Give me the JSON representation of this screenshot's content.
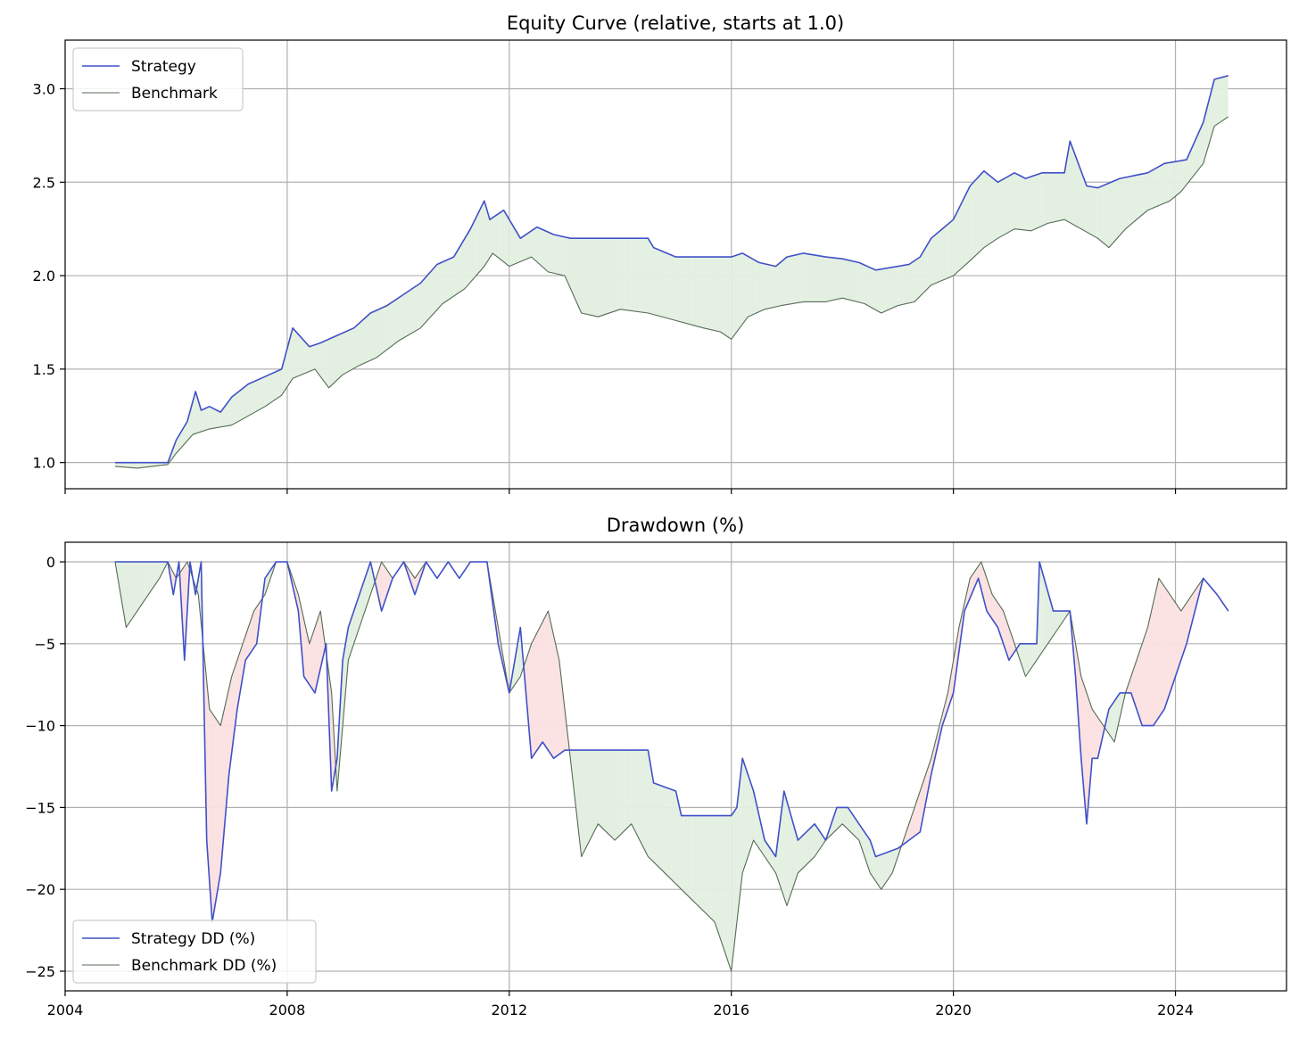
{
  "chart_data": [
    {
      "type": "line",
      "title": "Equity Curve (relative, starts at 1.0)",
      "xlabel": "",
      "ylabel": "",
      "xlim": [
        2004.0,
        2026.0
      ],
      "ylim": [
        0.86,
        3.26
      ],
      "yticks": [
        1.0,
        1.5,
        2.0,
        2.5,
        3.0
      ],
      "ytick_labels": [
        "1.0",
        "1.5",
        "2.0",
        "2.5",
        "3.0"
      ],
      "xticks": [
        2004,
        2008,
        2012,
        2016,
        2020,
        2024
      ],
      "grid": true,
      "legend_position": "upper-left",
      "fill_between": {
        "above_color": "#e3f0e1",
        "below_color": "#fbe1e1"
      },
      "series": [
        {
          "name": "Strategy",
          "color": "#4050c8",
          "x": [
            2004.9,
            2005.5,
            2005.85,
            2006.0,
            2006.2,
            2006.35,
            2006.45,
            2006.6,
            2006.8,
            2007.0,
            2007.3,
            2007.6,
            2007.9,
            2008.1,
            2008.4,
            2008.6,
            2008.9,
            2009.2,
            2009.5,
            2009.8,
            2010.1,
            2010.4,
            2010.7,
            2011.0,
            2011.3,
            2011.55,
            2011.65,
            2011.9,
            2012.2,
            2012.5,
            2012.8,
            2013.1,
            2014.5,
            2014.6,
            2015.0,
            2015.1,
            2016.0,
            2016.2,
            2016.5,
            2016.8,
            2017.0,
            2017.3,
            2017.7,
            2018.0,
            2018.3,
            2018.6,
            2019.2,
            2019.4,
            2019.6,
            2020.0,
            2020.3,
            2020.55,
            2020.8,
            2021.1,
            2021.3,
            2021.6,
            2022.0,
            2022.1,
            2022.4,
            2022.6,
            2023.0,
            2023.5,
            2023.8,
            2024.2,
            2024.5,
            2024.7,
            2024.95
          ],
          "values": [
            1.0,
            1.0,
            1.0,
            1.12,
            1.22,
            1.38,
            1.28,
            1.3,
            1.27,
            1.35,
            1.42,
            1.46,
            1.5,
            1.72,
            1.62,
            1.64,
            1.68,
            1.72,
            1.8,
            1.84,
            1.9,
            1.96,
            2.06,
            2.1,
            2.25,
            2.4,
            2.3,
            2.35,
            2.2,
            2.26,
            2.22,
            2.2,
            2.2,
            2.15,
            2.1,
            2.1,
            2.1,
            2.12,
            2.07,
            2.05,
            2.1,
            2.12,
            2.1,
            2.09,
            2.07,
            2.03,
            2.06,
            2.1,
            2.2,
            2.3,
            2.48,
            2.56,
            2.5,
            2.55,
            2.52,
            2.55,
            2.55,
            2.72,
            2.48,
            2.47,
            2.52,
            2.55,
            2.6,
            2.62,
            2.82,
            3.05,
            3.07
          ]
        },
        {
          "name": "Benchmark",
          "color": "#556b55",
          "x": [
            2004.9,
            2005.3,
            2005.85,
            2006.0,
            2006.3,
            2006.6,
            2007.0,
            2007.3,
            2007.6,
            2007.9,
            2008.1,
            2008.5,
            2008.75,
            2009.0,
            2009.3,
            2009.6,
            2010.0,
            2010.4,
            2010.8,
            2011.2,
            2011.55,
            2011.7,
            2012.0,
            2012.4,
            2012.7,
            2013.0,
            2013.3,
            2013.6,
            2014.0,
            2014.5,
            2015.0,
            2015.5,
            2015.8,
            2016.0,
            2016.3,
            2016.6,
            2016.9,
            2017.3,
            2017.7,
            2018.0,
            2018.4,
            2018.7,
            2019.0,
            2019.3,
            2019.6,
            2020.0,
            2020.3,
            2020.55,
            2020.8,
            2021.1,
            2021.4,
            2021.7,
            2022.0,
            2022.3,
            2022.6,
            2022.8,
            2023.1,
            2023.5,
            2023.9,
            2024.1,
            2024.5,
            2024.7,
            2024.95
          ],
          "values": [
            0.98,
            0.97,
            0.99,
            1.05,
            1.15,
            1.18,
            1.2,
            1.25,
            1.3,
            1.36,
            1.45,
            1.5,
            1.4,
            1.47,
            1.52,
            1.56,
            1.65,
            1.72,
            1.85,
            1.93,
            2.05,
            2.12,
            2.05,
            2.1,
            2.02,
            2.0,
            1.8,
            1.78,
            1.82,
            1.8,
            1.76,
            1.72,
            1.7,
            1.66,
            1.78,
            1.82,
            1.84,
            1.86,
            1.86,
            1.88,
            1.85,
            1.8,
            1.84,
            1.86,
            1.95,
            2.0,
            2.08,
            2.15,
            2.2,
            2.25,
            2.24,
            2.28,
            2.3,
            2.25,
            2.2,
            2.15,
            2.25,
            2.35,
            2.4,
            2.45,
            2.6,
            2.8,
            2.85
          ]
        }
      ]
    },
    {
      "type": "line",
      "title": "Drawdown (%)",
      "xlabel": "",
      "ylabel": "",
      "xlim": [
        2004.0,
        2026.0
      ],
      "ylim": [
        -26.2,
        1.2
      ],
      "yticks": [
        0,
        -5,
        -10,
        -15,
        -20,
        -25
      ],
      "ytick_labels": [
        "0",
        "−5",
        "−10",
        "−15",
        "−20",
        "−25"
      ],
      "xticks": [
        2004,
        2008,
        2012,
        2016,
        2020,
        2024
      ],
      "xtick_labels": [
        "2004",
        "2008",
        "2012",
        "2016",
        "2020",
        "2024"
      ],
      "grid": true,
      "legend_position": "lower-left",
      "fill_between": {
        "above_color": "#e3f0e1",
        "below_color": "#fbe1e1"
      },
      "series": [
        {
          "name": "Strategy DD (%)",
          "color": "#4050c8",
          "x": [
            2004.9,
            2005.85,
            2005.95,
            2006.05,
            2006.15,
            2006.25,
            2006.35,
            2006.45,
            2006.55,
            2006.65,
            2006.8,
            2006.95,
            2007.1,
            2007.25,
            2007.45,
            2007.6,
            2007.8,
            2008.0,
            2008.2,
            2008.3,
            2008.5,
            2008.7,
            2008.8,
            2008.9,
            2009.0,
            2009.1,
            2009.3,
            2009.5,
            2009.7,
            2009.9,
            2010.1,
            2010.3,
            2010.5,
            2010.7,
            2010.9,
            2011.1,
            2011.3,
            2011.6,
            2011.8,
            2012.0,
            2012.2,
            2012.4,
            2012.6,
            2012.8,
            2013.0,
            2013.2,
            2014.5,
            2014.6,
            2015.0,
            2015.1,
            2016.0,
            2016.1,
            2016.2,
            2016.4,
            2016.6,
            2016.8,
            2016.95,
            2017.2,
            2017.5,
            2017.7,
            2017.9,
            2018.1,
            2018.3,
            2018.5,
            2018.6,
            2019.0,
            2019.4,
            2019.6,
            2019.8,
            2020.0,
            2020.2,
            2020.45,
            2020.6,
            2020.8,
            2021.0,
            2021.2,
            2021.4,
            2021.5,
            2021.55,
            2021.8,
            2022.0,
            2022.1,
            2022.2,
            2022.3,
            2022.4,
            2022.5,
            2022.6,
            2022.8,
            2023.0,
            2023.2,
            2023.4,
            2023.6,
            2023.8,
            2024.0,
            2024.2,
            2024.5,
            2024.75,
            2024.95
          ],
          "values": [
            0,
            0,
            -2,
            0,
            -6,
            0,
            -2,
            0,
            -17,
            -22,
            -19,
            -13,
            -9,
            -6,
            -5,
            -1,
            0,
            0,
            -3,
            -7,
            -8,
            -5,
            -14,
            -12,
            -6,
            -4,
            -2,
            0,
            -3,
            -1,
            0,
            -2,
            0,
            -1,
            0,
            -1,
            0,
            0,
            -5,
            -8,
            -4,
            -12,
            -11,
            -12,
            -11.5,
            -11.5,
            -11.5,
            -13.5,
            -14,
            -15.5,
            -15.5,
            -15,
            -12,
            -14,
            -17,
            -18,
            -14,
            -17,
            -16,
            -17,
            -15,
            -15,
            -16,
            -17,
            -18,
            -17.5,
            -16.5,
            -13,
            -10,
            -8,
            -3,
            -1,
            -3,
            -4,
            -6,
            -5,
            -5,
            -5,
            0,
            -3,
            -3,
            -3,
            -7,
            -12,
            -16,
            -12,
            -12,
            -9,
            -8,
            -8,
            -10,
            -10,
            -9,
            -7,
            -5,
            -1,
            -2,
            -3
          ]
        },
        {
          "name": "Benchmark DD (%)",
          "color": "#556b55",
          "x": [
            2004.9,
            2005.1,
            2005.3,
            2005.5,
            2005.7,
            2005.85,
            2006.0,
            2006.2,
            2006.4,
            2006.6,
            2006.8,
            2007.0,
            2007.2,
            2007.4,
            2007.6,
            2007.8,
            2008.0,
            2008.2,
            2008.4,
            2008.6,
            2008.8,
            2008.9,
            2009.1,
            2009.3,
            2009.5,
            2009.7,
            2009.9,
            2010.1,
            2010.3,
            2010.5,
            2010.7,
            2010.9,
            2011.1,
            2011.3,
            2011.6,
            2011.8,
            2012.0,
            2012.2,
            2012.4,
            2012.7,
            2012.9,
            2013.1,
            2013.3,
            2013.6,
            2013.9,
            2014.2,
            2014.5,
            2014.8,
            2015.1,
            2015.4,
            2015.7,
            2015.9,
            2016.0,
            2016.2,
            2016.4,
            2016.6,
            2016.8,
            2017.0,
            2017.2,
            2017.5,
            2017.7,
            2018.0,
            2018.3,
            2018.5,
            2018.7,
            2018.9,
            2019.1,
            2019.3,
            2019.6,
            2019.9,
            2020.1,
            2020.3,
            2020.5,
            2020.7,
            2020.9,
            2021.1,
            2021.3,
            2021.5,
            2021.7,
            2021.9,
            2022.1,
            2022.3,
            2022.5,
            2022.7,
            2022.9,
            2023.1,
            2023.3,
            2023.5,
            2023.7,
            2023.9,
            2024.1,
            2024.3,
            2024.5,
            2024.75,
            2024.95
          ],
          "values": [
            0,
            -4,
            -3,
            -2,
            -1,
            0,
            -1,
            0,
            -2,
            -9,
            -10,
            -7,
            -5,
            -3,
            -2,
            0,
            0,
            -2,
            -5,
            -3,
            -8,
            -14,
            -6,
            -4,
            -2,
            0,
            -1,
            0,
            -1,
            0,
            -1,
            0,
            -1,
            0,
            0,
            -4,
            -8,
            -7,
            -5,
            -3,
            -6,
            -12,
            -18,
            -16,
            -17,
            -16,
            -18,
            -19,
            -20,
            -21,
            -22,
            -24,
            -25,
            -19,
            -17,
            -18,
            -19,
            -21,
            -19,
            -18,
            -17,
            -16,
            -17,
            -19,
            -20,
            -19,
            -17,
            -15,
            -12,
            -8,
            -4,
            -1,
            0,
            -2,
            -3,
            -5,
            -7,
            -6,
            -5,
            -4,
            -3,
            -7,
            -9,
            -10,
            -11,
            -8,
            -6,
            -4,
            -1,
            -2,
            -3,
            -2,
            -1,
            -2,
            -3
          ]
        }
      ]
    }
  ]
}
